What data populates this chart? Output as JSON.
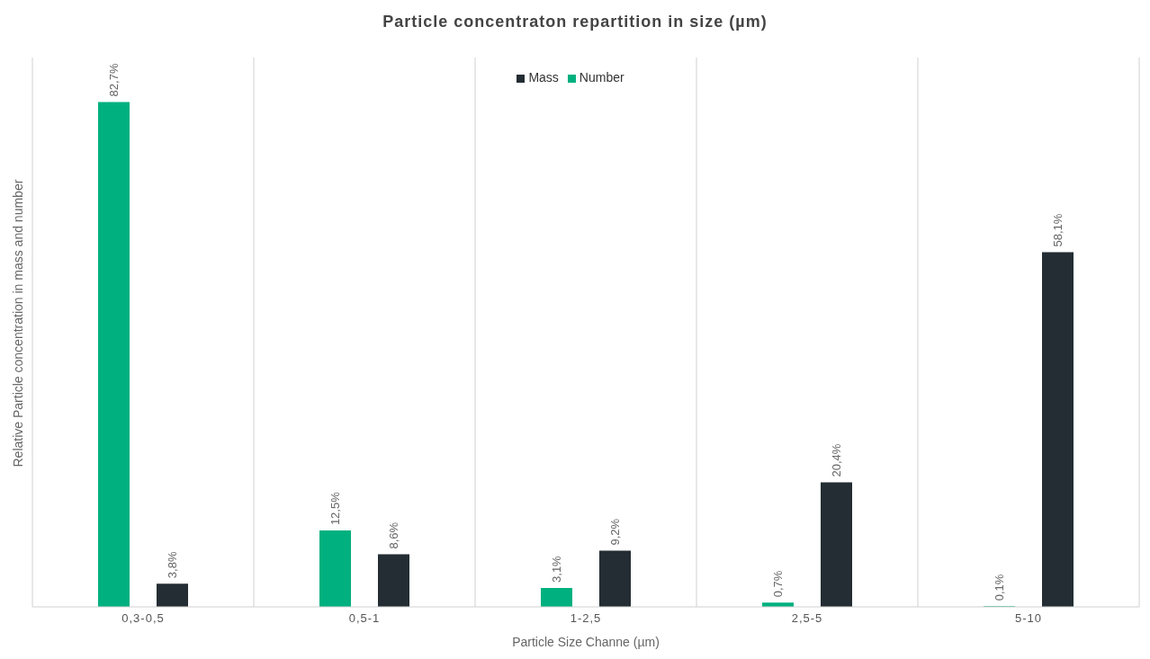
{
  "chart_data": {
    "type": "bar",
    "title": "Particle concentraton repartition in size (µm)",
    "xlabel": "Particle Size Channe (µm)",
    "ylabel": "Relative Particle concentration in mass and number",
    "categories": [
      "0,3-0,5",
      "0,5-1",
      "1-2,5",
      "2,5-5",
      "5-10"
    ],
    "series": [
      {
        "name": "Number",
        "color": "#00b07f",
        "values": [
          82.7,
          12.5,
          3.1,
          0.7,
          0.1
        ],
        "value_labels": [
          "82,7%",
          "12,5%",
          "3,1%",
          "0,7%",
          "0,1%"
        ]
      },
      {
        "name": "Mass",
        "color": "#232d33",
        "values": [
          3.8,
          8.6,
          9.2,
          20.4,
          58.1
        ],
        "value_labels": [
          "3,8%",
          "8,6%",
          "9,2%",
          "20,4%",
          "58,1%"
        ]
      }
    ],
    "grid": "x",
    "legend": "top"
  }
}
